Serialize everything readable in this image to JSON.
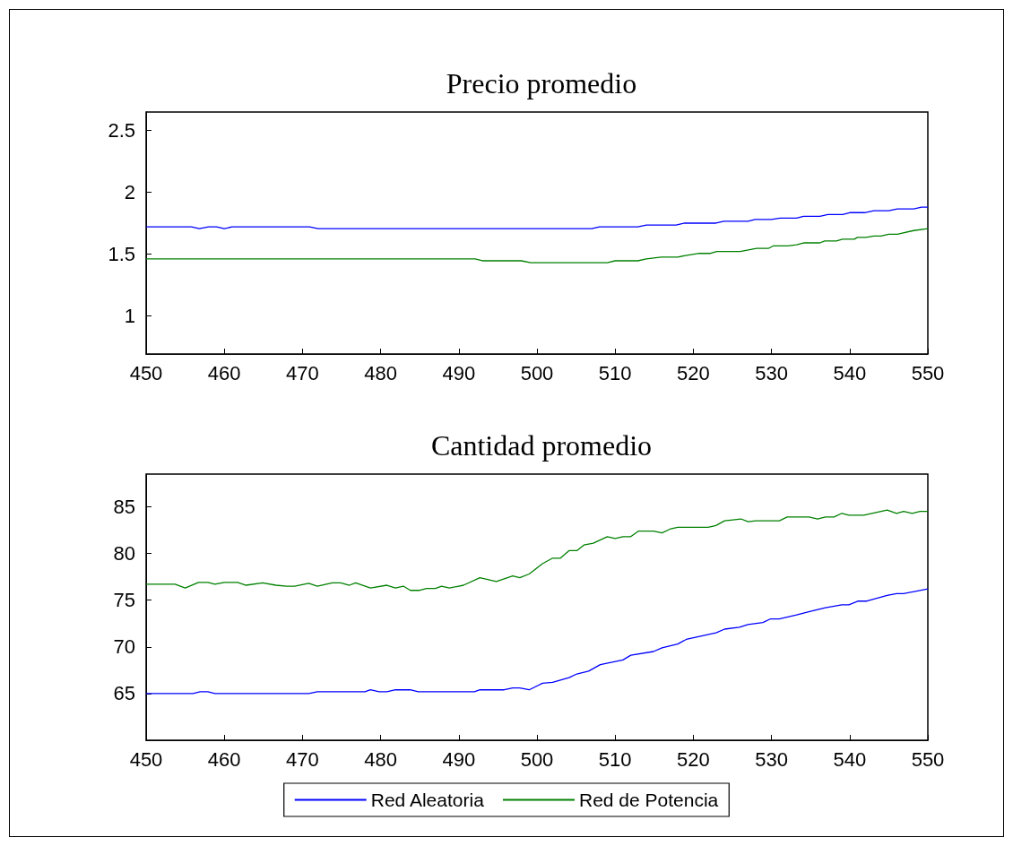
{
  "chart_data": [
    {
      "type": "line",
      "title": "Precio promedio",
      "xlim": [
        450,
        550
      ],
      "xticks": [
        450,
        460,
        470,
        480,
        490,
        500,
        510,
        520,
        530,
        540,
        550
      ],
      "ylim": [
        0.69,
        2.65
      ],
      "yticks": [
        1,
        1.5,
        2,
        2.5
      ],
      "legend": false,
      "series": [
        {
          "color": "#0000ff",
          "x": [
            450,
            455.8,
            456.8,
            458,
            459,
            460,
            461,
            470.9,
            472,
            507,
            508,
            512.9,
            514,
            517.8,
            518.9,
            522.9,
            523.9,
            527,
            527.9,
            530,
            531.1,
            533.2,
            534.1,
            536.2,
            537.2,
            539.1,
            540,
            541.9,
            543.1,
            545,
            546.1,
            548.2,
            549.2,
            550
          ],
          "values": [
            1.72,
            1.72,
            1.705,
            1.72,
            1.72,
            1.705,
            1.72,
            1.72,
            1.705,
            1.705,
            1.72,
            1.72,
            1.735,
            1.735,
            1.75,
            1.75,
            1.765,
            1.765,
            1.78,
            1.78,
            1.79,
            1.79,
            1.805,
            1.805,
            1.82,
            1.82,
            1.835,
            1.835,
            1.85,
            1.85,
            1.865,
            1.865,
            1.88,
            1.88
          ]
        },
        {
          "color": "#008000",
          "x": [
            450,
            492.1,
            493,
            498,
            499.2,
            509,
            510,
            512.9,
            514,
            515.9,
            518,
            519.2,
            520.8,
            522.2,
            523,
            526,
            528.1,
            529.6,
            530.2,
            532.1,
            533.2,
            534.1,
            536.2,
            536.8,
            538.3,
            539.1,
            540.6,
            541,
            542.1,
            543.1,
            544,
            545,
            546.1,
            548.2,
            550
          ],
          "values": [
            1.46,
            1.46,
            1.445,
            1.445,
            1.43,
            1.43,
            1.445,
            1.445,
            1.46,
            1.475,
            1.475,
            1.49,
            1.505,
            1.505,
            1.52,
            1.52,
            1.545,
            1.545,
            1.565,
            1.565,
            1.575,
            1.59,
            1.59,
            1.605,
            1.605,
            1.62,
            1.62,
            1.635,
            1.635,
            1.645,
            1.645,
            1.66,
            1.66,
            1.69,
            1.705
          ]
        }
      ]
    },
    {
      "type": "line",
      "title": "Cantidad promedio",
      "xlim": [
        450,
        550
      ],
      "xticks": [
        450,
        460,
        470,
        480,
        490,
        500,
        510,
        520,
        530,
        540,
        550
      ],
      "ylim": [
        60,
        88.5
      ],
      "yticks": [
        65,
        70,
        75,
        80,
        85
      ],
      "legend": "bottom",
      "series": [
        {
          "name": "Red Aleatoria",
          "color": "#0000ff",
          "x": [
            450,
            456,
            456.9,
            457.9,
            458.8,
            470.8,
            471.9,
            478,
            478.7,
            479.8,
            480.8,
            481.9,
            483.8,
            484.8,
            492,
            492.7,
            495.8,
            496.9,
            497.8,
            499,
            500.7,
            502,
            504.1,
            505.1,
            506.6,
            508.1,
            511,
            512,
            514.9,
            516,
            518,
            519.1,
            522.9,
            524,
            525.9,
            527,
            528.9,
            529.9,
            531,
            533.1,
            535,
            536.9,
            539,
            539.9,
            541.1,
            542.2,
            544.8,
            546,
            546.9,
            550
          ],
          "values": [
            65,
            65,
            65.2,
            65.2,
            65,
            65,
            65.2,
            65.2,
            65.4,
            65.2,
            65.2,
            65.4,
            65.4,
            65.2,
            65.2,
            65.4,
            65.4,
            65.6,
            65.6,
            65.4,
            66.1,
            66.2,
            66.7,
            67.1,
            67.4,
            68.1,
            68.6,
            69.1,
            69.5,
            69.9,
            70.3,
            70.8,
            71.5,
            71.9,
            72.1,
            72.4,
            72.6,
            73,
            73,
            73.4,
            73.8,
            74.2,
            74.5,
            74.5,
            74.9,
            74.9,
            75.5,
            75.7,
            75.7,
            76.2
          ]
        },
        {
          "name": "Red de Potencia",
          "color": "#008000",
          "x": [
            450,
            453.7,
            455,
            456.7,
            457.9,
            458.8,
            460,
            461.7,
            462.8,
            464.9,
            466.6,
            468,
            469,
            470.8,
            471.9,
            473.8,
            474.9,
            476,
            476.8,
            478.7,
            480.8,
            481.9,
            482.9,
            483.8,
            485,
            485.9,
            487,
            487.8,
            488.8,
            490.6,
            492.7,
            494.8,
            496.9,
            497.8,
            499,
            500.7,
            502,
            503,
            504.1,
            505.1,
            506,
            507.2,
            509,
            510,
            511,
            512,
            513,
            514.9,
            516,
            517,
            518,
            521.9,
            522.9,
            524,
            526.1,
            527,
            528,
            531,
            532,
            534.8,
            535.9,
            536.9,
            538,
            539,
            539.9,
            541.8,
            544.8,
            546,
            546.9,
            548,
            549,
            550
          ],
          "values": [
            76.7,
            76.7,
            76.3,
            76.9,
            76.9,
            76.7,
            76.9,
            76.9,
            76.6,
            76.85,
            76.6,
            76.5,
            76.5,
            76.8,
            76.5,
            76.85,
            76.85,
            76.6,
            76.85,
            76.3,
            76.6,
            76.3,
            76.5,
            76.05,
            76.05,
            76.25,
            76.25,
            76.5,
            76.3,
            76.6,
            77.4,
            77,
            77.6,
            77.4,
            77.8,
            78.9,
            79.5,
            79.5,
            80.3,
            80.3,
            80.9,
            81.1,
            81.8,
            81.6,
            81.8,
            81.8,
            82.4,
            82.4,
            82.2,
            82.6,
            82.8,
            82.8,
            83,
            83.5,
            83.7,
            83.4,
            83.5,
            83.5,
            83.9,
            83.9,
            83.7,
            83.9,
            83.9,
            84.3,
            84.1,
            84.1,
            84.65,
            84.3,
            84.5,
            84.3,
            84.5,
            84.5
          ]
        }
      ]
    }
  ]
}
